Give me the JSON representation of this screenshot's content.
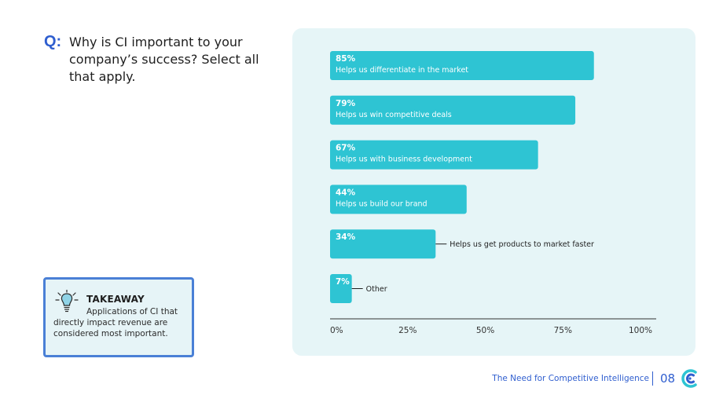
{
  "question": {
    "label": "Q:",
    "text": "Why is CI important to your company’s success? Select all that apply."
  },
  "takeaway": {
    "title": "TAKEAWAY",
    "body_line1": "Applications of CI that",
    "body_rest": "directly impact revenue are considered most important."
  },
  "footer": {
    "title": "The Need for Competitive Intelligence",
    "page": "08"
  },
  "colors": {
    "bar": "#2ec4d3",
    "panel": "#e6f5f7",
    "accent": "#2f5ecf"
  },
  "chart_data": {
    "type": "bar",
    "orientation": "horizontal",
    "categories": [
      "Helps us differentiate in the market",
      "Helps us win competitive deals",
      "Helps us with business development",
      "Helps us build our brand",
      "Helps us get products to market faster",
      "Other"
    ],
    "values": [
      85,
      79,
      67,
      44,
      34,
      7
    ],
    "value_labels": [
      "85%",
      "79%",
      "67%",
      "44%",
      "34%",
      "7%"
    ],
    "label_placement": [
      "inside",
      "inside",
      "inside",
      "inside",
      "outside",
      "outside"
    ],
    "xlim": [
      0,
      100
    ],
    "xticks": [
      "0%",
      "25%",
      "50%",
      "75%",
      "100%"
    ],
    "xtick_values": [
      0,
      25,
      50,
      75,
      100
    ]
  }
}
